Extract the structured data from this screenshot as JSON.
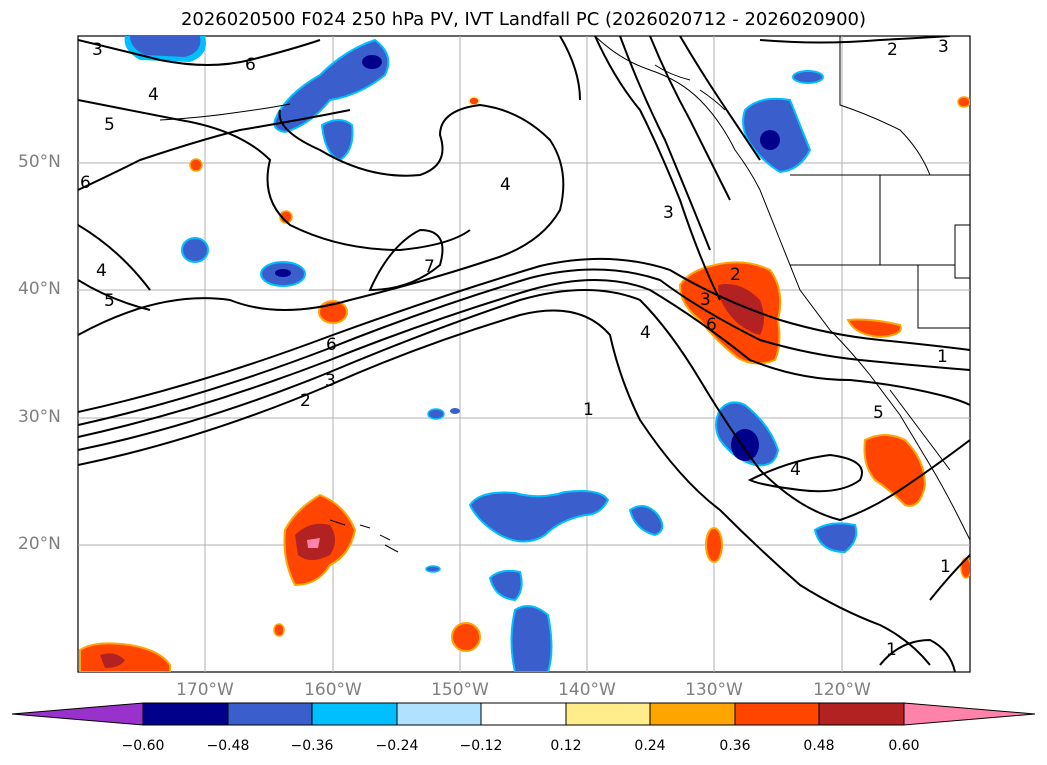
{
  "title": "2026020500 F024 250 hPa PV, IVT Landfall PC (2026020712 - 2026020900)",
  "map": {
    "lat_labels": [
      "50°N",
      "40°N",
      "30°N",
      "20°N"
    ],
    "lon_labels": [
      "170°W",
      "160°W",
      "150°W",
      "140°W",
      "130°W",
      "120°W"
    ],
    "contour_labels": [
      "3",
      "6",
      "4",
      "5",
      "6",
      "4",
      "5",
      "7",
      "6",
      "3",
      "2",
      "4",
      "3",
      "6",
      "3",
      "2",
      "4",
      "1",
      "1",
      "5",
      "4",
      "1",
      "1",
      "2",
      "3"
    ]
  },
  "colorbar": {
    "labels": [
      "−0.60",
      "−0.48",
      "−0.36",
      "−0.24",
      "−0.12",
      "0.12",
      "0.24",
      "0.36",
      "0.48",
      "0.60"
    ],
    "colors": [
      "#9932cc",
      "#00008b",
      "#3a5fcd",
      "#00bfff",
      "#b0e2ff",
      "#ffffff",
      "#ffec8b",
      "#ffa500",
      "#ff4500",
      "#b22222",
      "#ff82ab"
    ]
  }
}
